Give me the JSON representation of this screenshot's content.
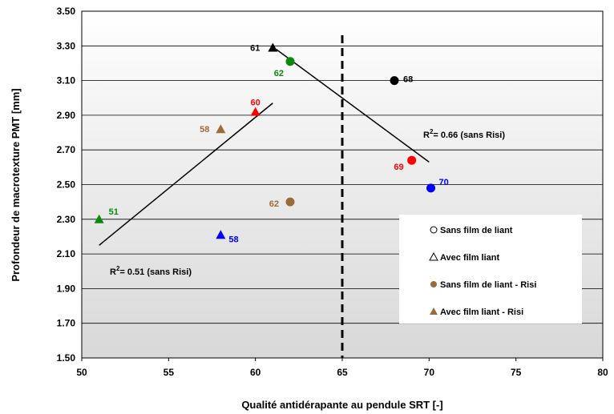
{
  "chart_data": {
    "type": "scatter",
    "title": "",
    "xlabel": "Qualité antidérapante au pendule SRT [-]",
    "ylabel": "Profondeur de macrotexture PMT [mm]",
    "xlim": [
      50,
      80
    ],
    "ylim": [
      1.5,
      3.5
    ],
    "x_ticks": [
      "50",
      "55",
      "60",
      "65",
      "70",
      "75",
      "80"
    ],
    "y_ticks": [
      "1.50",
      "1.70",
      "1.90",
      "2.10",
      "2.30",
      "2.50",
      "2.70",
      "2.90",
      "3.10",
      "3.30",
      "3.50"
    ],
    "grid": "horizontal",
    "legend_placement": "bottom-right",
    "legend": [
      {
        "name": "Sans film de liant",
        "marker": "open-circle"
      },
      {
        "name": "Avec film liant",
        "marker": "open-triangle"
      },
      {
        "name": "Sans film de liant - Risi",
        "marker": "filled-circle",
        "color": "#9b6b3c"
      },
      {
        "name": "Avec film liant - Risi",
        "marker": "filled-triangle",
        "color": "#9b6b3c"
      }
    ],
    "points": [
      {
        "x": 61,
        "y": 3.29,
        "marker": "triangle",
        "color": "#000000",
        "label": "61"
      },
      {
        "x": 62,
        "y": 3.21,
        "marker": "circle",
        "color": "#0a8a0a",
        "label": "62"
      },
      {
        "x": 68,
        "y": 3.1,
        "marker": "circle",
        "color": "#000000",
        "label": "68"
      },
      {
        "x": 60,
        "y": 2.92,
        "marker": "triangle",
        "color": "#ff0000",
        "label": "60"
      },
      {
        "x": 58,
        "y": 2.82,
        "marker": "triangle",
        "color": "#9b6b3c",
        "label": "58"
      },
      {
        "x": 69,
        "y": 2.64,
        "marker": "circle",
        "color": "#ff0000",
        "label": "69"
      },
      {
        "x": 70.1,
        "y": 2.48,
        "marker": "circle",
        "color": "#0000ff",
        "label": "70"
      },
      {
        "x": 62,
        "y": 2.4,
        "marker": "circle",
        "color": "#9b6b3c",
        "label": "62"
      },
      {
        "x": 51,
        "y": 2.3,
        "marker": "triangle",
        "color": "#0a8a0a",
        "label": "51"
      },
      {
        "x": 58,
        "y": 2.21,
        "marker": "triangle",
        "color": "#0000ff",
        "label": "58"
      }
    ],
    "trendlines": [
      {
        "x1": 51,
        "y1": 2.15,
        "x2": 61,
        "y2": 2.97,
        "label": "= 0.51 (sans Risi)"
      },
      {
        "x1": 61.2,
        "y1": 3.28,
        "x2": 70,
        "y2": 2.63,
        "label": "= 0.66 (sans Risi)"
      }
    ],
    "threshold_x": 65
  }
}
